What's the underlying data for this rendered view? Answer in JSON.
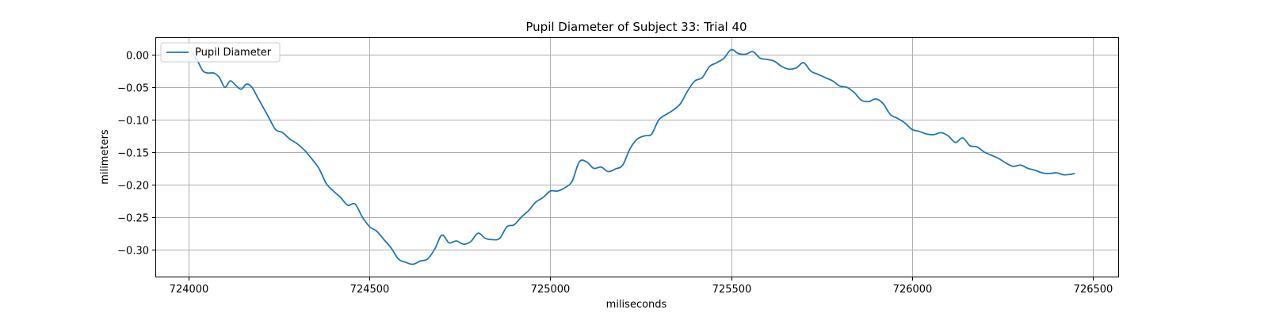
{
  "chart_data": {
    "type": "line",
    "title": "Pupil Diameter of Subject 33: Trial 40",
    "xlabel": "miliseconds",
    "ylabel": "milimeters",
    "xlim": [
      723910,
      726570
    ],
    "ylim": [
      -0.342,
      0.026
    ],
    "xticks": [
      724000,
      724500,
      725000,
      725500,
      726000,
      726500
    ],
    "yticks": [
      0.0,
      -0.05,
      -0.1,
      -0.15,
      -0.2,
      -0.25,
      -0.3
    ],
    "ytick_labels": [
      "0.00",
      "−0.05",
      "−0.10",
      "−0.15",
      "−0.20",
      "−0.25",
      "−0.30"
    ],
    "grid": true,
    "legend": "upper-left",
    "line_color": "#1f77b4",
    "series": [
      {
        "name": "Pupil Diameter",
        "x": [
          724010,
          724025,
          724040,
          724055,
          724070,
          724085,
          724100,
          724115,
          724130,
          724145,
          724160,
          724175,
          724190,
          724205,
          724220,
          724240,
          724260,
          724280,
          724300,
          724320,
          724340,
          724360,
          724380,
          724400,
          724420,
          724440,
          724460,
          724480,
          724500,
          724520,
          724540,
          724560,
          724580,
          724600,
          724620,
          724640,
          724660,
          724680,
          724700,
          724720,
          724740,
          724760,
          724780,
          724800,
          724820,
          724840,
          724860,
          724880,
          724900,
          724920,
          724940,
          724960,
          724980,
          725000,
          725020,
          725040,
          725060,
          725080,
          725100,
          725120,
          725140,
          725160,
          725180,
          725200,
          725220,
          725240,
          725260,
          725280,
          725300,
          725320,
          725340,
          725360,
          725380,
          725400,
          725420,
          725440,
          725460,
          725480,
          725500,
          725520,
          725540,
          725560,
          725580,
          725600,
          725620,
          725640,
          725660,
          725680,
          725700,
          725720,
          725740,
          725760,
          725780,
          725800,
          725820,
          725840,
          725860,
          725880,
          725900,
          725920,
          725940,
          725960,
          725980,
          726000,
          726020,
          726040,
          726060,
          726080,
          726100,
          726120,
          726140,
          726160,
          726180,
          726200,
          726220,
          726240,
          726260,
          726280,
          726300,
          726320,
          726340,
          726360,
          726380,
          726400,
          726420,
          726440,
          726450
        ],
        "y": [
          0.003,
          -0.01,
          -0.025,
          -0.028,
          -0.028,
          -0.035,
          -0.05,
          -0.04,
          -0.047,
          -0.053,
          -0.045,
          -0.05,
          -0.065,
          -0.08,
          -0.095,
          -0.115,
          -0.12,
          -0.13,
          -0.137,
          -0.147,
          -0.16,
          -0.175,
          -0.198,
          -0.21,
          -0.22,
          -0.232,
          -0.23,
          -0.25,
          -0.265,
          -0.272,
          -0.285,
          -0.298,
          -0.315,
          -0.32,
          -0.323,
          -0.318,
          -0.315,
          -0.3,
          -0.278,
          -0.29,
          -0.287,
          -0.292,
          -0.288,
          -0.275,
          -0.283,
          -0.285,
          -0.283,
          -0.265,
          -0.262,
          -0.25,
          -0.24,
          -0.227,
          -0.22,
          -0.21,
          -0.21,
          -0.205,
          -0.195,
          -0.165,
          -0.165,
          -0.175,
          -0.173,
          -0.18,
          -0.176,
          -0.17,
          -0.145,
          -0.13,
          -0.125,
          -0.122,
          -0.1,
          -0.092,
          -0.085,
          -0.075,
          -0.055,
          -0.04,
          -0.035,
          -0.018,
          -0.012,
          -0.005,
          0.008,
          0.002,
          0.001,
          0.005,
          -0.005,
          -0.007,
          -0.01,
          -0.018,
          -0.022,
          -0.02,
          -0.012,
          -0.025,
          -0.03,
          -0.035,
          -0.04,
          -0.048,
          -0.05,
          -0.058,
          -0.07,
          -0.072,
          -0.068,
          -0.075,
          -0.092,
          -0.098,
          -0.105,
          -0.115,
          -0.118,
          -0.122,
          -0.123,
          -0.12,
          -0.125,
          -0.135,
          -0.128,
          -0.14,
          -0.142,
          -0.15,
          -0.155,
          -0.16,
          -0.167,
          -0.172,
          -0.17,
          -0.175,
          -0.178,
          -0.182,
          -0.183,
          -0.182,
          -0.185,
          -0.184,
          -0.183
        ]
      }
    ]
  }
}
